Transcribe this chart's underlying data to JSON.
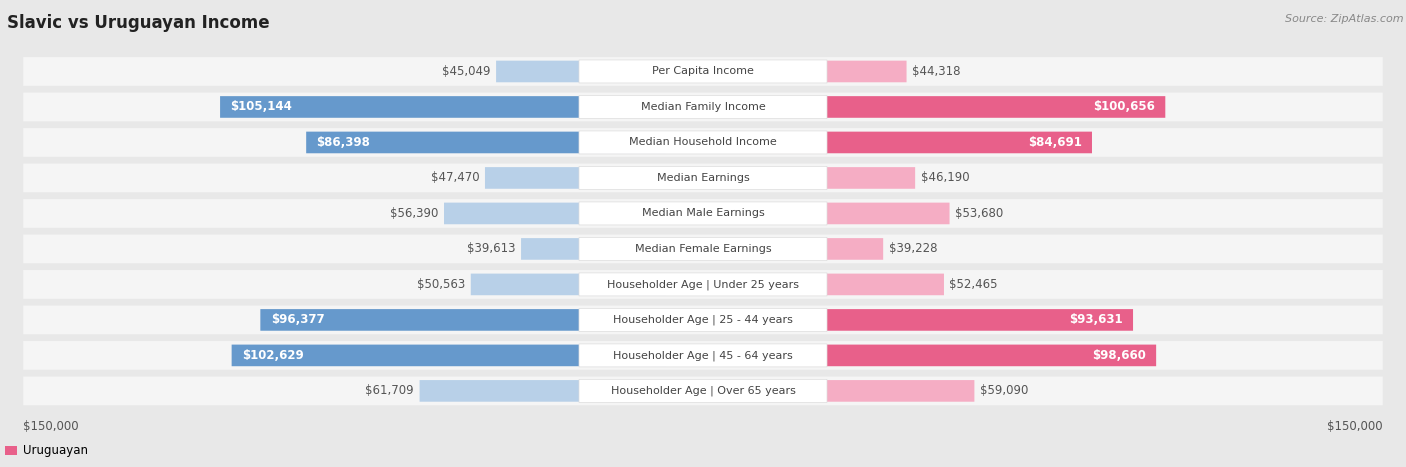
{
  "title": "Slavic vs Uruguayan Income",
  "source": "Source: ZipAtlas.com",
  "categories": [
    "Per Capita Income",
    "Median Family Income",
    "Median Household Income",
    "Median Earnings",
    "Median Male Earnings",
    "Median Female Earnings",
    "Householder Age | Under 25 years",
    "Householder Age | 25 - 44 years",
    "Householder Age | 45 - 64 years",
    "Householder Age | Over 65 years"
  ],
  "slavic_values": [
    45049,
    105144,
    86398,
    47470,
    56390,
    39613,
    50563,
    96377,
    102629,
    61709
  ],
  "uruguayan_values": [
    44318,
    100656,
    84691,
    46190,
    53680,
    39228,
    52465,
    93631,
    98660,
    59090
  ],
  "slavic_labels": [
    "$45,049",
    "$105,144",
    "$86,398",
    "$47,470",
    "$56,390",
    "$39,613",
    "$50,563",
    "$96,377",
    "$102,629",
    "$61,709"
  ],
  "uruguayan_labels": [
    "$44,318",
    "$100,656",
    "$84,691",
    "$46,190",
    "$53,680",
    "$39,228",
    "$52,465",
    "$93,631",
    "$98,660",
    "$59,090"
  ],
  "slavic_color_light": "#b8d0e8",
  "slavic_color_dark": "#6699cc",
  "uruguayan_color_light": "#f5adc4",
  "uruguayan_color_dark": "#e8608a",
  "max_value": 150000,
  "bg_color": "#e8e8e8",
  "row_bg": "#f5f5f5",
  "inside_threshold": 75000,
  "label_fontsize": 8.5,
  "title_fontsize": 12,
  "source_fontsize": 8,
  "axis_label_fontsize": 8.5,
  "legend_fontsize": 8.5,
  "category_fontsize": 8
}
